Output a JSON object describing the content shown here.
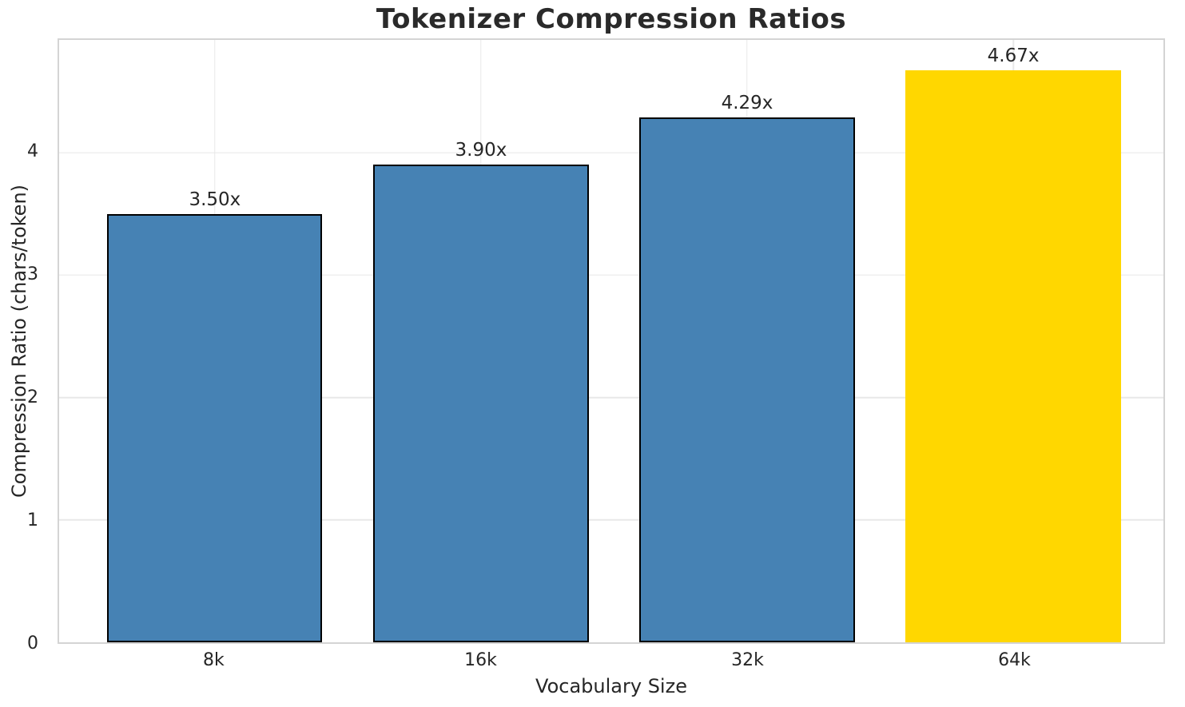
{
  "chart_data": {
    "type": "bar",
    "title": "Tokenizer Compression Ratios",
    "xlabel": "Vocabulary Size",
    "ylabel": "Compression Ratio (chars/token)",
    "categories": [
      "8k",
      "16k",
      "32k",
      "64k"
    ],
    "values": [
      3.5,
      3.9,
      4.29,
      4.67
    ],
    "bar_labels": [
      "3.50x",
      "3.90x",
      "4.29x",
      "4.67x"
    ],
    "bar_colors": [
      "#4682B4",
      "#4682B4",
      "#4682B4",
      "#FFD700"
    ],
    "bar_edge_colors": [
      "#000000",
      "#000000",
      "#000000",
      "none"
    ],
    "yticks": [
      0,
      1,
      2,
      3,
      4
    ],
    "ylim": [
      0,
      4.92
    ],
    "grid": true,
    "legend": "none",
    "colors": {
      "grid": "#e8e8e8",
      "spine": "#d4d4d4",
      "title_text": "#2a2a2a",
      "label_text": "#262626",
      "background": "#ffffff"
    }
  }
}
